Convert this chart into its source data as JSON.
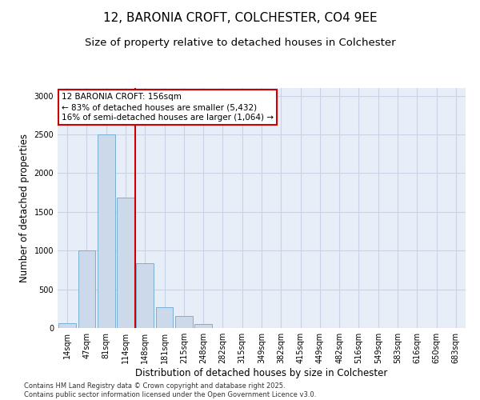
{
  "title_line1": "12, BARONIA CROFT, COLCHESTER, CO4 9EE",
  "title_line2": "Size of property relative to detached houses in Colchester",
  "xlabel": "Distribution of detached houses by size in Colchester",
  "ylabel": "Number of detached properties",
  "categories": [
    "14sqm",
    "47sqm",
    "81sqm",
    "114sqm",
    "148sqm",
    "181sqm",
    "215sqm",
    "248sqm",
    "282sqm",
    "315sqm",
    "349sqm",
    "382sqm",
    "415sqm",
    "449sqm",
    "482sqm",
    "516sqm",
    "549sqm",
    "583sqm",
    "616sqm",
    "650sqm",
    "683sqm"
  ],
  "values": [
    60,
    1000,
    2500,
    1680,
    840,
    270,
    155,
    55,
    0,
    0,
    0,
    0,
    0,
    0,
    0,
    0,
    0,
    0,
    0,
    0,
    0
  ],
  "bar_color": "#ccd9eb",
  "bar_edgecolor": "#7aafd4",
  "vline_x": 3.5,
  "vline_color": "#cc0000",
  "annotation_text": "12 BARONIA CROFT: 156sqm\n← 83% of detached houses are smaller (5,432)\n16% of semi-detached houses are larger (1,064) →",
  "annotation_box_color": "#cc0000",
  "ylim": [
    0,
    3100
  ],
  "yticks": [
    0,
    500,
    1000,
    1500,
    2000,
    2500,
    3000
  ],
  "grid_color": "#c8d4e6",
  "bg_color": "#e8eef8",
  "footnote": "Contains HM Land Registry data © Crown copyright and database right 2025.\nContains public sector information licensed under the Open Government Licence v3.0.",
  "title_fontsize": 11,
  "subtitle_fontsize": 9.5,
  "label_fontsize": 8.5,
  "tick_fontsize": 7,
  "annotation_fontsize": 7.5,
  "footnote_fontsize": 6
}
